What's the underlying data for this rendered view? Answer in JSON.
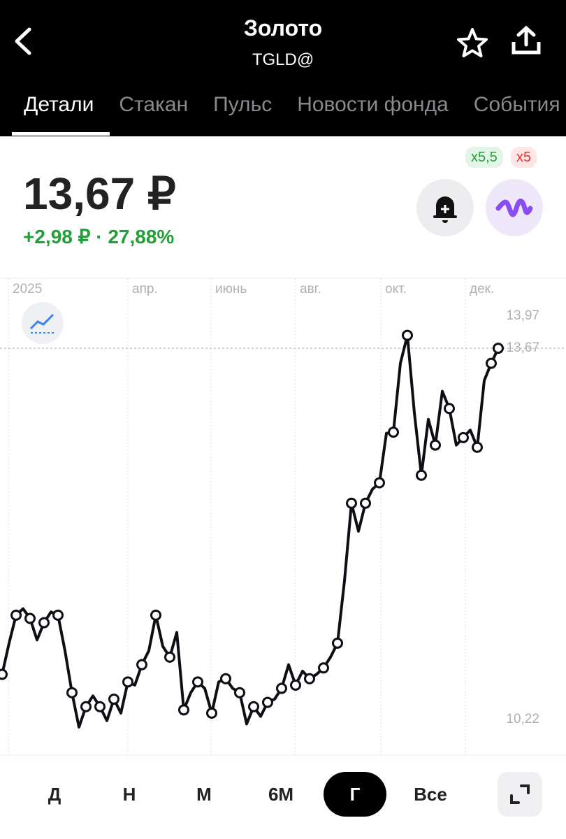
{
  "header": {
    "title": "Золото",
    "subtitle": "TGLD@"
  },
  "tabs": [
    "Детали",
    "Стакан",
    "Пульс",
    "Новости фонда",
    "События"
  ],
  "quote": {
    "price": "13,67 ₽",
    "change": "+2,98 ₽ · 27,88%",
    "badges": [
      "x5,5",
      "x5"
    ]
  },
  "chart_data": {
    "type": "line",
    "color": "#0d0f14",
    "x_labels": [
      "2025",
      "апр.",
      "июнь",
      "авг.",
      "окт.",
      "дек."
    ],
    "values": [
      10.64,
      10.93,
      11.19,
      11.25,
      11.16,
      10.96,
      11.12,
      11.22,
      11.19,
      10.86,
      10.47,
      10.15,
      10.34,
      10.44,
      10.34,
      10.21,
      10.41,
      10.28,
      10.57,
      10.54,
      10.73,
      10.86,
      11.19,
      10.9,
      10.8,
      11.03,
      10.31,
      10.47,
      10.57,
      10.51,
      10.28,
      10.57,
      10.6,
      10.51,
      10.47,
      10.18,
      10.34,
      10.25,
      10.38,
      10.41,
      10.51,
      10.73,
      10.54,
      10.67,
      10.6,
      10.64,
      10.7,
      10.8,
      10.93,
      11.51,
      12.23,
      11.97,
      12.23,
      12.36,
      12.42,
      12.88,
      12.89,
      13.53,
      13.79,
      13.07,
      12.49,
      13.01,
      12.77,
      13.27,
      13.11,
      12.77,
      12.84,
      12.91,
      12.75,
      13.37,
      13.53,
      13.67
    ],
    "ylim": [
      9.89,
      14.32
    ],
    "yticks": [
      {
        "value": 13.97,
        "label": "13,97"
      },
      {
        "value": 13.67,
        "label": "13,67"
      },
      {
        "value": 10.22,
        "label": "10,22"
      }
    ]
  },
  "periods": [
    "Д",
    "Н",
    "М",
    "6М",
    "Г",
    "Все"
  ]
}
